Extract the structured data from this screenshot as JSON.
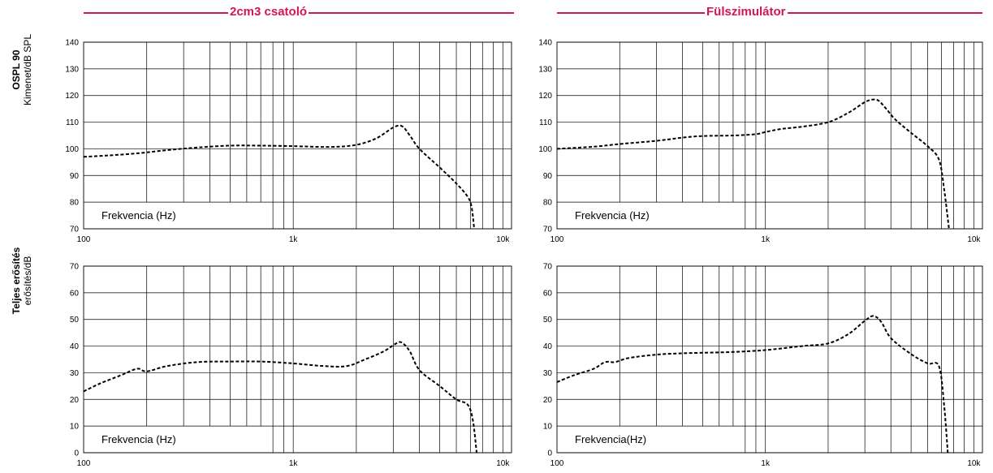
{
  "headers": {
    "left": "2cm3 csatoló",
    "right": "Fülszimulátor"
  },
  "row_labels": {
    "top": {
      "title": "OSPL 90",
      "subtitle": "Kimenet/dB SPL"
    },
    "bottom": {
      "title": "Teljes erősítés",
      "subtitle": "erősítés/dB"
    }
  },
  "colors": {
    "accent": "#d4145a",
    "grid": "#000000",
    "curve": "#000000"
  },
  "chart_data": [
    {
      "id": "ospl-coupler",
      "type": "line",
      "xscale": "log",
      "xlim": [
        100,
        11000
      ],
      "ylim": [
        70,
        140
      ],
      "yticks": [
        70,
        80,
        90,
        100,
        110,
        120,
        130,
        140
      ],
      "xtick_labels": [
        "100",
        "1k",
        "10k"
      ],
      "annotation": "Frekvencia (Hz)",
      "series": [
        {
          "x": [
            100,
            130,
            180,
            250,
            350,
            500,
            700,
            1000,
            1500,
            2000,
            2500,
            3000,
            3300,
            3600,
            4000,
            5000,
            6000,
            6800,
            7100,
            7300
          ],
          "y": [
            97,
            97.5,
            98.3,
            99.5,
            100.5,
            101.2,
            101.2,
            101,
            100.7,
            101.5,
            104,
            108,
            108.5,
            105,
            100,
            93,
            87,
            82,
            78,
            70
          ]
        }
      ]
    },
    {
      "id": "ospl-ear",
      "type": "line",
      "xscale": "log",
      "xlim": [
        100,
        11000
      ],
      "ylim": [
        70,
        140
      ],
      "yticks": [
        70,
        80,
        90,
        100,
        110,
        120,
        130,
        140
      ],
      "xtick_labels": [
        "100",
        "1k",
        "10k"
      ],
      "annotation": "Frekvencia (Hz)",
      "series": [
        {
          "x": [
            100,
            150,
            200,
            300,
            400,
            500,
            700,
            900,
            1000,
            1200,
            1500,
            2000,
            2500,
            3000,
            3300,
            3500,
            3800,
            4200,
            5000,
            6000,
            6800,
            7200,
            7600
          ],
          "y": [
            100,
            100.8,
            101.8,
            103,
            104.2,
            104.8,
            105,
            105.5,
            106.3,
            107.5,
            108.3,
            110,
            113.5,
            117.5,
            118.5,
            118,
            115,
            111,
            106,
            101,
            96,
            85,
            70
          ]
        }
      ]
    },
    {
      "id": "gain-coupler",
      "type": "line",
      "xscale": "log",
      "xlim": [
        100,
        11000
      ],
      "ylim": [
        0,
        70
      ],
      "yticks": [
        0,
        10,
        20,
        30,
        40,
        50,
        60,
        70
      ],
      "xtick_labels": [
        "100",
        "1k",
        "10k"
      ],
      "annotation": "Frekvencia (Hz)",
      "series": [
        {
          "x": [
            100,
            120,
            150,
            180,
            200,
            250,
            350,
            500,
            700,
            1000,
            1400,
            1800,
            2200,
            2700,
            3100,
            3300,
            3600,
            4000,
            5000,
            6000,
            6800,
            7200,
            7500
          ],
          "y": [
            23,
            26,
            29,
            31.5,
            30.5,
            32.5,
            34,
            34.2,
            34.2,
            33.5,
            32.5,
            32.5,
            35,
            38,
            41,
            41.3,
            38,
            31,
            25,
            20,
            18,
            12,
            0
          ]
        }
      ]
    },
    {
      "id": "gain-ear",
      "type": "line",
      "xscale": "log",
      "xlim": [
        100,
        11000
      ],
      "ylim": [
        0,
        70
      ],
      "yticks": [
        0,
        10,
        20,
        30,
        40,
        50,
        60,
        70
      ],
      "xtick_labels": [
        "100",
        "1k",
        "10k"
      ],
      "annotation": "Frekvencia(Hz)",
      "series": [
        {
          "x": [
            100,
            120,
            150,
            170,
            190,
            220,
            300,
            400,
            500,
            700,
            1000,
            1500,
            2000,
            2500,
            3000,
            3300,
            3600,
            4000,
            5000,
            6000,
            6800,
            7200,
            7500
          ],
          "y": [
            26.5,
            29,
            31.5,
            34,
            34,
            35.5,
            36.8,
            37.3,
            37.5,
            37.8,
            38.5,
            40,
            41,
            44.5,
            49.5,
            51.3,
            49,
            43,
            37,
            33.5,
            32.5,
            18,
            0
          ]
        }
      ]
    }
  ]
}
